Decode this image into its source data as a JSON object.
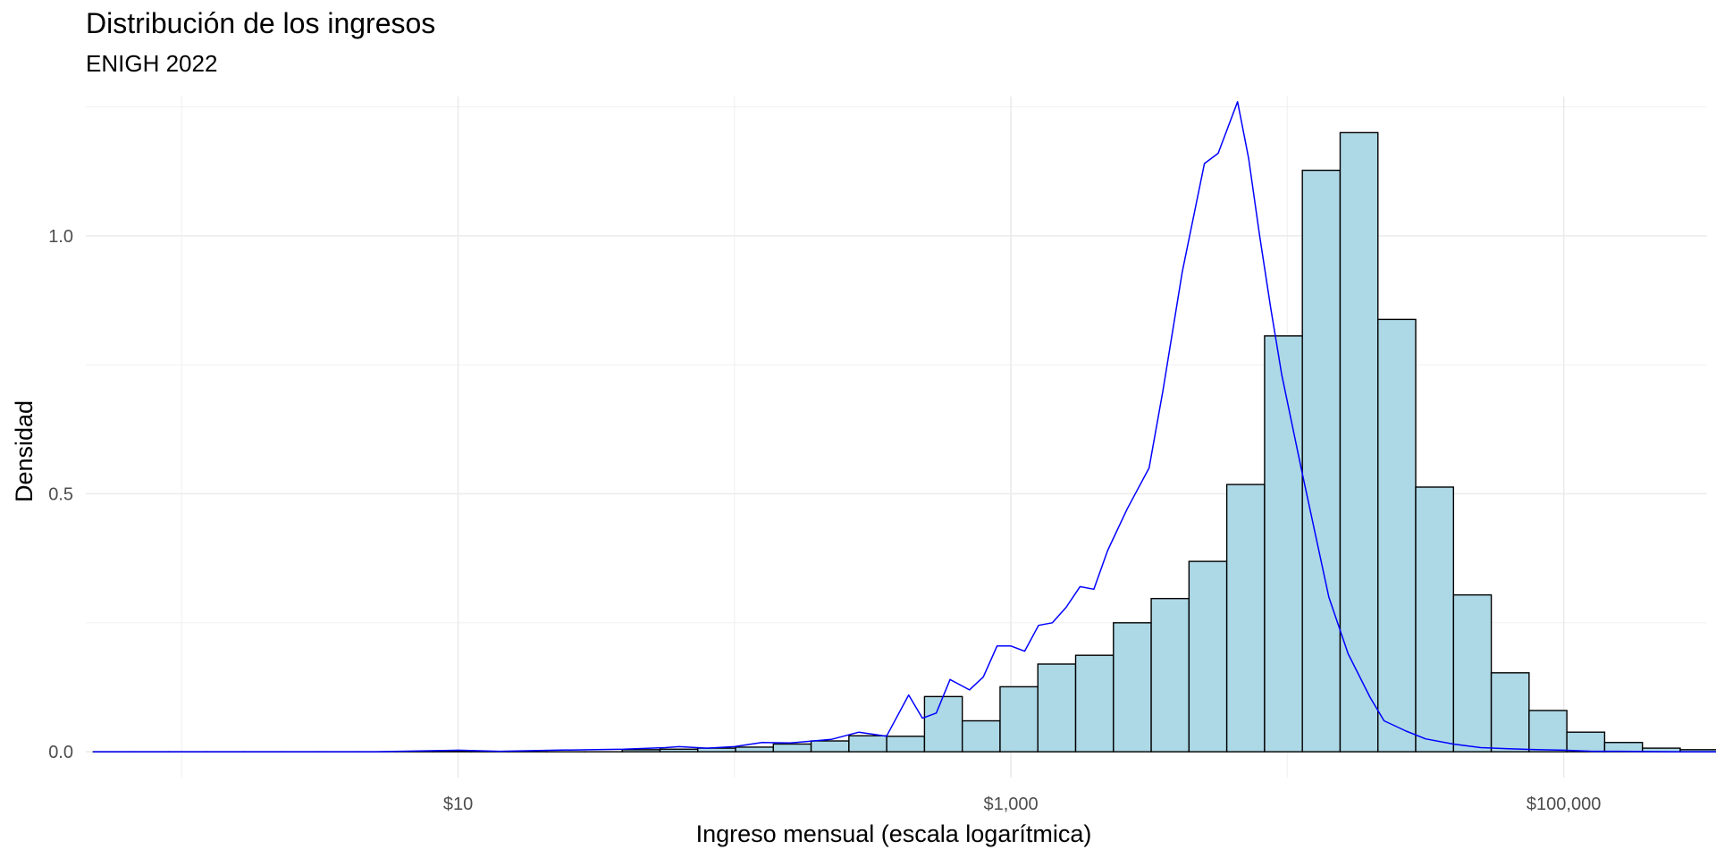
{
  "chart_data": {
    "type": "bar",
    "title": "Distribución de los ingresos",
    "subtitle": "ENIGH 2022",
    "xlabel": "Ingreso mensual (escala logarítmica)",
    "ylabel": "Densidad",
    "x_scale": "log10",
    "xlim": [
      0.45,
      330000
    ],
    "ylim": [
      -0.05,
      1.27
    ],
    "x_ticks": [
      10,
      1000,
      100000
    ],
    "x_tick_labels": [
      "$10",
      "$1,000",
      "$100,000"
    ],
    "y_ticks": [
      0,
      0.5,
      1
    ],
    "y_tick_labels": [
      "0.0",
      "0.5",
      "1.0"
    ],
    "grid": true,
    "histogram": {
      "bin_log10_start": -0.32,
      "bin_log10_width": 0.1367,
      "fill": "#add8e6",
      "stroke": "#000000",
      "values": [
        0,
        0,
        0,
        0,
        0,
        0,
        0,
        0,
        0,
        0.001,
        0,
        0,
        0,
        0,
        0.004,
        0.005,
        0.007,
        0.009,
        0.015,
        0.021,
        0.031,
        0.03,
        0.107,
        0.06,
        0.126,
        0.17,
        0.187,
        0.25,
        0.297,
        0.369,
        0.518,
        0.806,
        1.127,
        1.2,
        0.838,
        0.513,
        0.304,
        0.153,
        0.08,
        0.038,
        0.018,
        0.007,
        0.004,
        0.002,
        0.001,
        0,
        0,
        0,
        0,
        0,
        0
      ]
    },
    "density": {
      "color": "#0000ff",
      "x_log10": [
        -0.32,
        0.3,
        0.7,
        1.0,
        1.15,
        1.35,
        1.6,
        1.75,
        1.8,
        1.9,
        2.0,
        2.1,
        2.2,
        2.35,
        2.45,
        2.55,
        2.63,
        2.68,
        2.73,
        2.78,
        2.85,
        2.9,
        2.95,
        3.0,
        3.05,
        3.1,
        3.15,
        3.2,
        3.25,
        3.3,
        3.35,
        3.42,
        3.5,
        3.55,
        3.62,
        3.7,
        3.75,
        3.82,
        3.86,
        3.9,
        3.94,
        3.98,
        4.05,
        4.15,
        4.22,
        4.3,
        4.35,
        4.43,
        4.5,
        4.6,
        4.7,
        4.8,
        4.9,
        5.0,
        5.1,
        5.2,
        5.4,
        5.6,
        5.8,
        6.0,
        6.25
      ],
      "y": [
        0,
        0,
        0,
        0.003,
        0.001,
        0.003,
        0.005,
        0.008,
        0.01,
        0.007,
        0.01,
        0.018,
        0.017,
        0.024,
        0.038,
        0.03,
        0.11,
        0.065,
        0.075,
        0.14,
        0.12,
        0.145,
        0.205,
        0.205,
        0.195,
        0.245,
        0.25,
        0.28,
        0.32,
        0.315,
        0.39,
        0.47,
        0.55,
        0.7,
        0.93,
        1.14,
        1.16,
        1.26,
        1.15,
        1.0,
        0.86,
        0.73,
        0.55,
        0.3,
        0.19,
        0.105,
        0.06,
        0.04,
        0.025,
        0.015,
        0.008,
        0.006,
        0.004,
        0.003,
        0.001,
        0.001,
        0,
        0,
        0,
        0,
        0
      ]
    }
  }
}
